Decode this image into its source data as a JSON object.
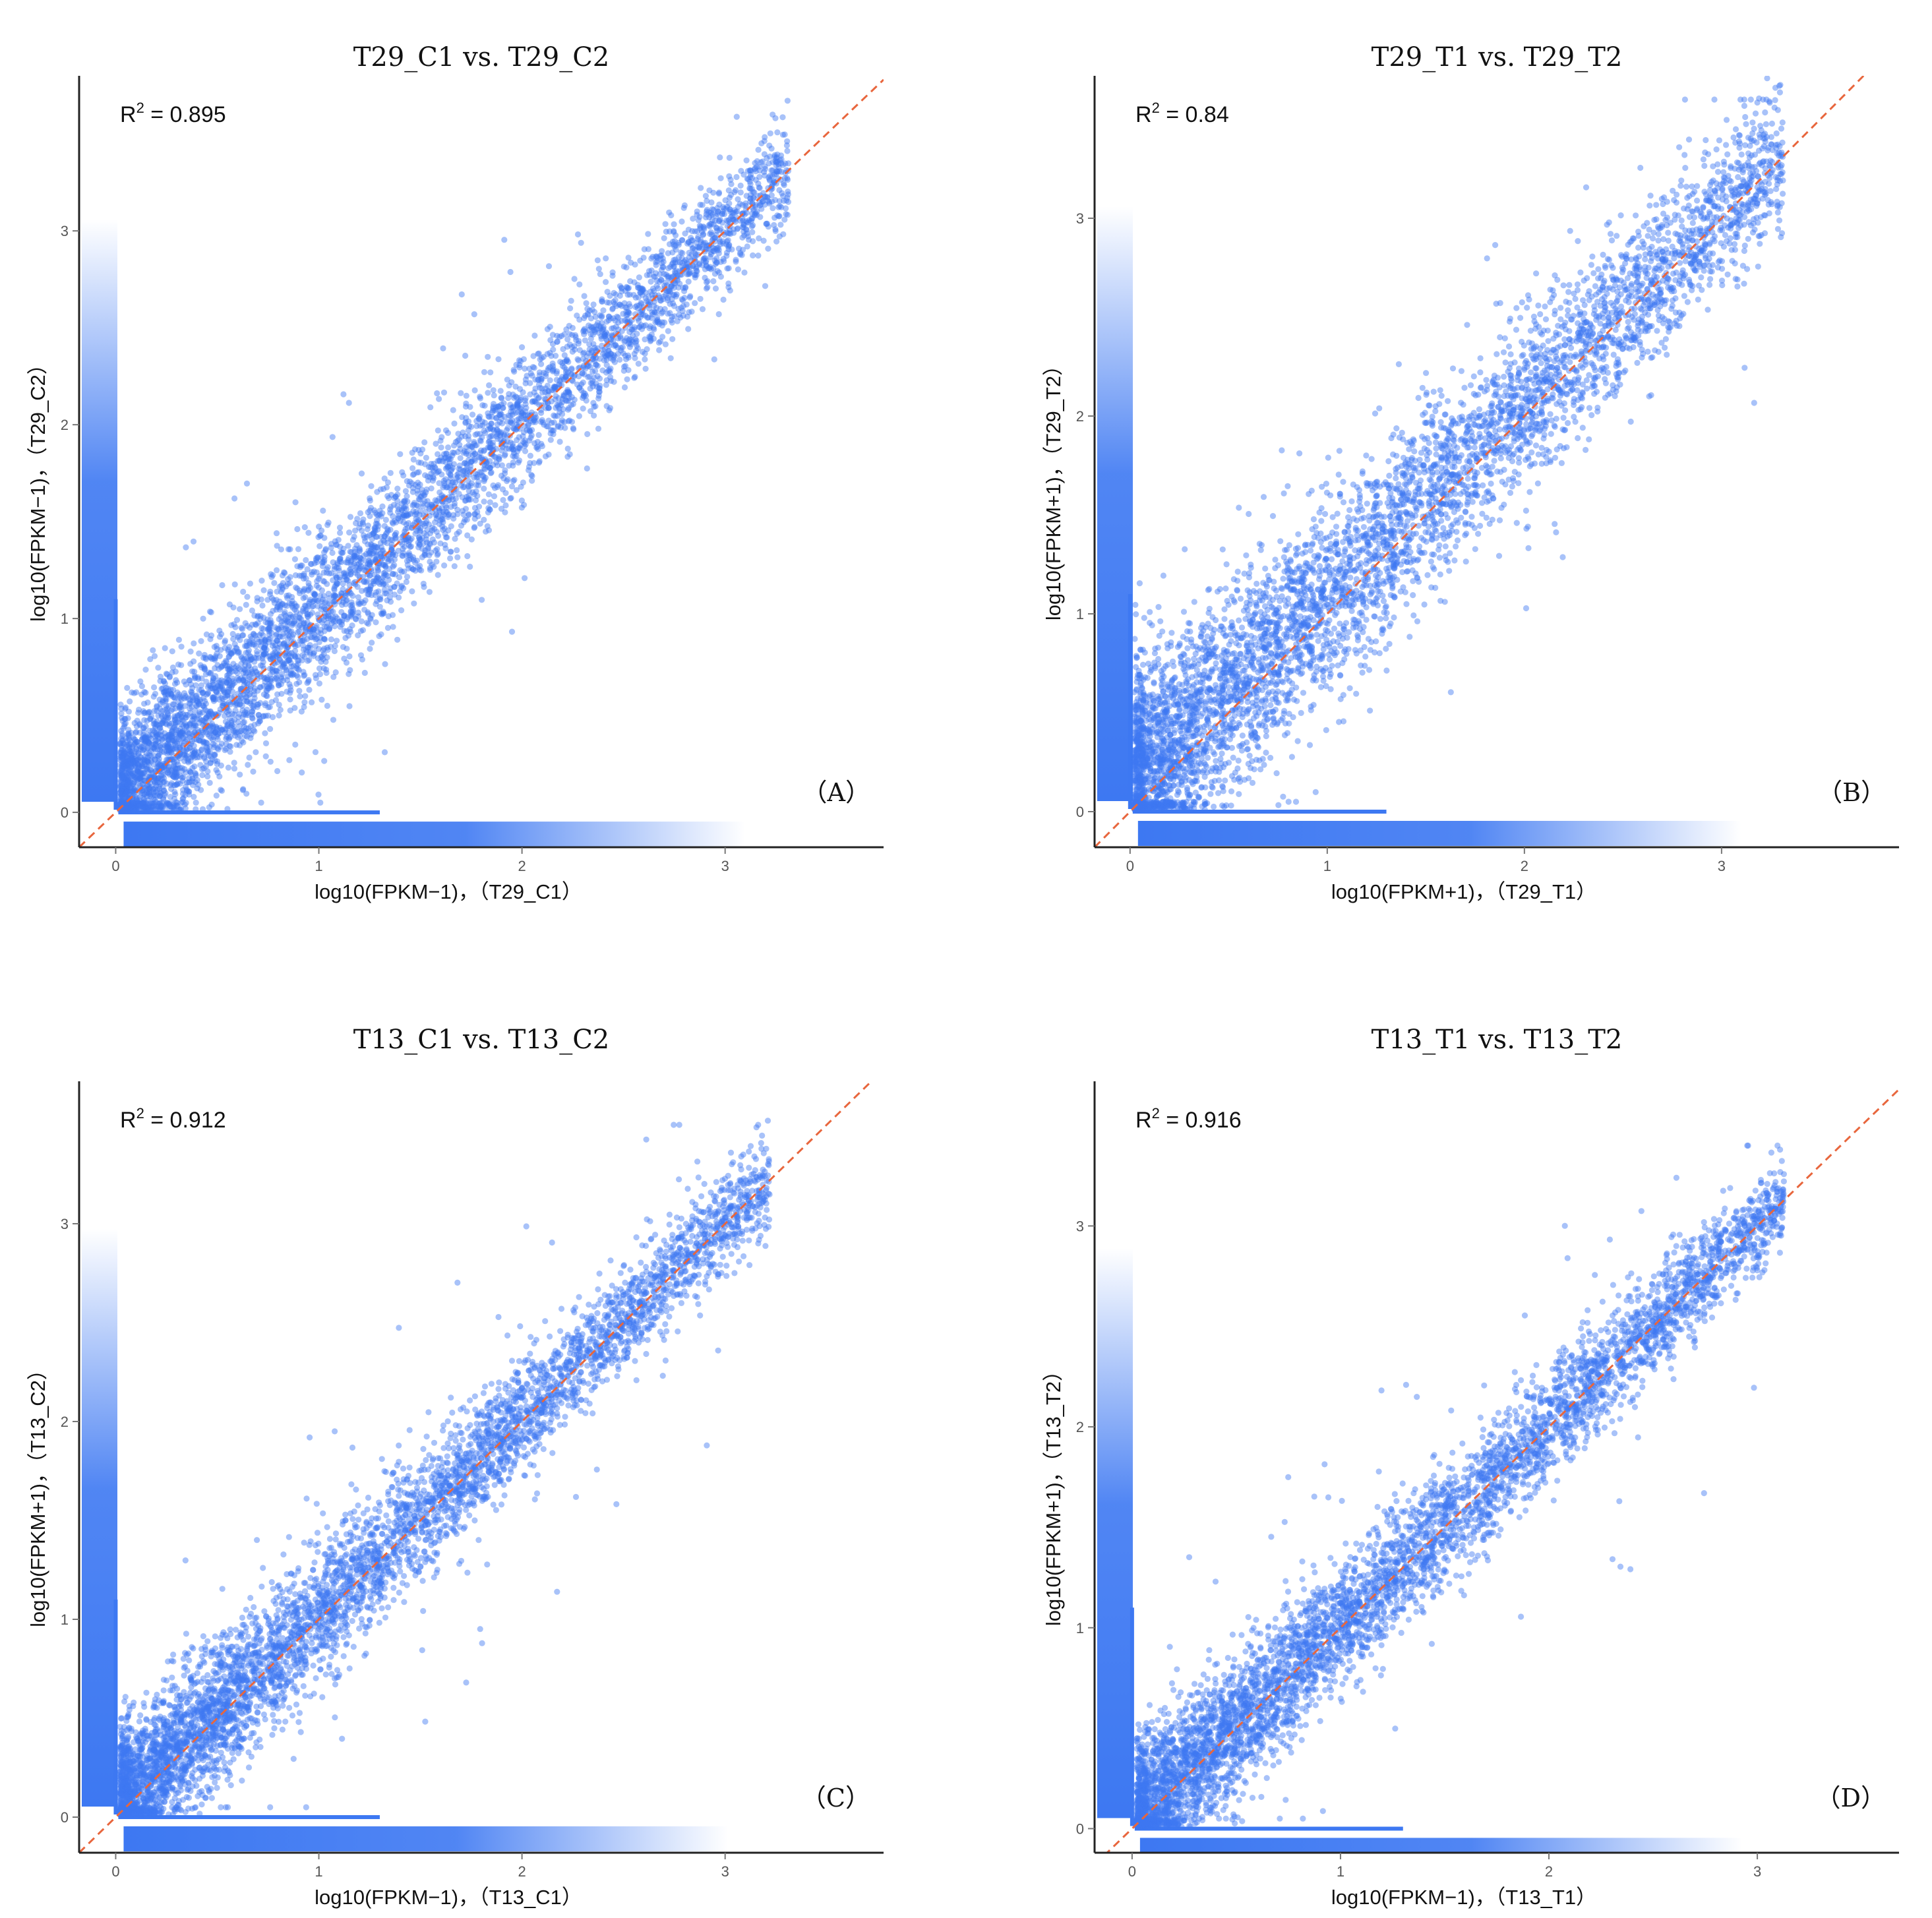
{
  "chart_data": [
    {
      "type": "scatter",
      "title": "T29_C1 vs. T29_C2",
      "xlabel": "log10(FPKM−1)，（T29_C1）",
      "ylabel": "log10(FPKM−1)，（T29_C2）",
      "r2_label": "R",
      "r2_value": "= 0.895",
      "panel_label": "（A）",
      "xticks": [
        "0",
        "1",
        "2",
        "3"
      ],
      "yticks": [
        "0",
        "1",
        "2",
        "3"
      ],
      "xlim": [
        -0.18,
        3.78
      ],
      "ylim": [
        -0.18,
        3.8
      ],
      "reference_line": "y = x",
      "point_color": "#3d78f2",
      "line_color": "#e8663d",
      "grid": false,
      "r2": 0.895,
      "spread": 0.17,
      "upper_bias": 0.05,
      "max": 3.6
    },
    {
      "type": "scatter",
      "title": "T29_T1 vs. T29_T2",
      "xlabel": "log10(FPKM+1)，（T29_T1）",
      "ylabel": "log10(FPKM+1)，（T29_T2）",
      "r2_label": "R",
      "r2_value": "= 0.84",
      "panel_label": "（B）",
      "xticks": [
        "0",
        "1",
        "2",
        "3"
      ],
      "yticks": [
        "0",
        "1",
        "2",
        "3"
      ],
      "xlim": [
        -0.18,
        3.9
      ],
      "ylim": [
        -0.18,
        3.72
      ],
      "reference_line": "y = x",
      "point_color": "#3d78f2",
      "line_color": "#e8663d",
      "grid": false,
      "r2": 0.84,
      "spread": 0.22,
      "upper_bias": 0.12,
      "max": 3.6
    },
    {
      "type": "scatter",
      "title": "T13_C1 vs. T13_C2",
      "xlabel": "log10(FPKM−1)，（T13_C1）",
      "ylabel": "log10(FPKM+1)，（T13_C2）",
      "r2_label": "R",
      "r2_value": "= 0.912",
      "panel_label": "（C）",
      "xticks": [
        "0",
        "1",
        "2",
        "3"
      ],
      "yticks": [
        "0",
        "1",
        "2",
        "3"
      ],
      "xlim": [
        -0.18,
        3.78
      ],
      "ylim": [
        -0.18,
        3.72
      ],
      "reference_line": "y = x",
      "point_color": "#3d78f2",
      "line_color": "#e8663d",
      "grid": false,
      "r2": 0.912,
      "spread": 0.15,
      "upper_bias": 0.04,
      "max": 3.5
    },
    {
      "type": "scatter",
      "title": "T13_T1 vs. T13_T2",
      "xlabel": "log10(FPKM−1)，（T13_T1）",
      "ylabel": "log10(FPKM+1)，（T13_T2）",
      "r2_label": "R",
      "r2_value": "= 0.916",
      "panel_label": "（D）",
      "xticks": [
        "0",
        "1",
        "2",
        "3"
      ],
      "yticks": [
        "0",
        "1",
        "2",
        "3"
      ],
      "xlim": [
        -0.18,
        3.68
      ],
      "ylim": [
        -0.12,
        3.72
      ],
      "reference_line": "y = x",
      "point_color": "#3d78f2",
      "line_color": "#e8663d",
      "grid": false,
      "r2": 0.916,
      "spread": 0.14,
      "upper_bias": 0.03,
      "max": 3.4
    }
  ]
}
